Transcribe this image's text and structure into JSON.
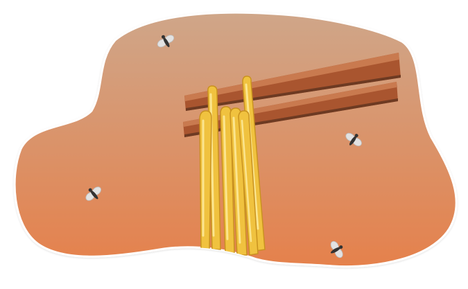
{
  "illustration": {
    "subject": "noodles-lifted-by-chopsticks-with-flies",
    "colors": {
      "background_top": "#cfa689",
      "background_bottom": "#e5814c",
      "chopstick": "#a9552f",
      "chopstick_highlight": "#c97a4f",
      "chopstick_shadow": "#6d3a22",
      "noodle": "#f0c23f",
      "noodle_highlight": "#fbe58f",
      "noodle_shadow": "#c9921f",
      "fly_body": "#333333",
      "fly_wing": "#e2e2e2",
      "blob_edge": "#ffffff"
    },
    "icons": [
      "chopsticks-icon",
      "noodles-icon",
      "fly-icon"
    ],
    "fly_count": 4,
    "noodle_count": 6,
    "chopstick_count": 2
  }
}
